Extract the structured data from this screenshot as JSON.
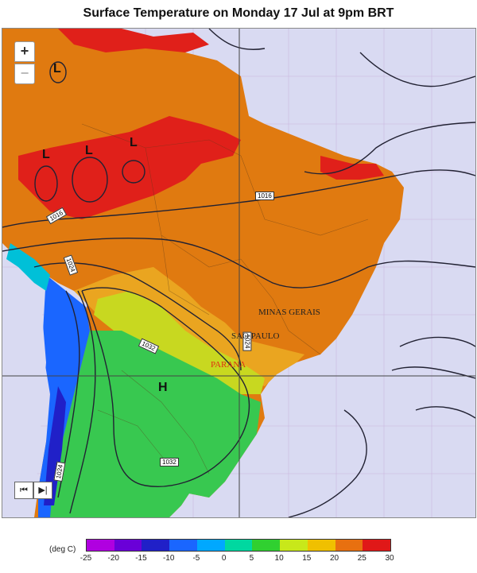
{
  "title": "Surface Temperature on Monday 17 Jul at 9pm BRT",
  "controls": {
    "zoom_in": "+",
    "zoom_out": "−",
    "first": "⏮",
    "next": "▶|"
  },
  "places": {
    "minas": "MINAS GERAIS",
    "saopaulo": "SAO PAULO",
    "parana": "PARANA"
  },
  "isobars": [
    "1016",
    "1016",
    "1024",
    "1032",
    "1032",
    "1024",
    "1024"
  ],
  "pressure_centers": {
    "low": "L",
    "high": "H"
  },
  "legend": {
    "unit": "(deg C)",
    "ticks": [
      "-25",
      "-20",
      "-15",
      "-10",
      "-5",
      "0",
      "5",
      "10",
      "15",
      "20",
      "25",
      "30"
    ],
    "colors": [
      "#ff00ff",
      "#b000e0",
      "#6a00d8",
      "#2020c8",
      "#1a66ff",
      "#00a8ff",
      "#00d8a0",
      "#30d030",
      "#c8e81a",
      "#f0c000",
      "#e87010",
      "#e01818",
      "#c00000"
    ]
  },
  "colors": {
    "ocean": "#d9daf2",
    "hot": "#e0201a",
    "warm": "#e07a10",
    "mild": "#eaa520",
    "cool": "#c8d820",
    "green": "#38c850"
  }
}
